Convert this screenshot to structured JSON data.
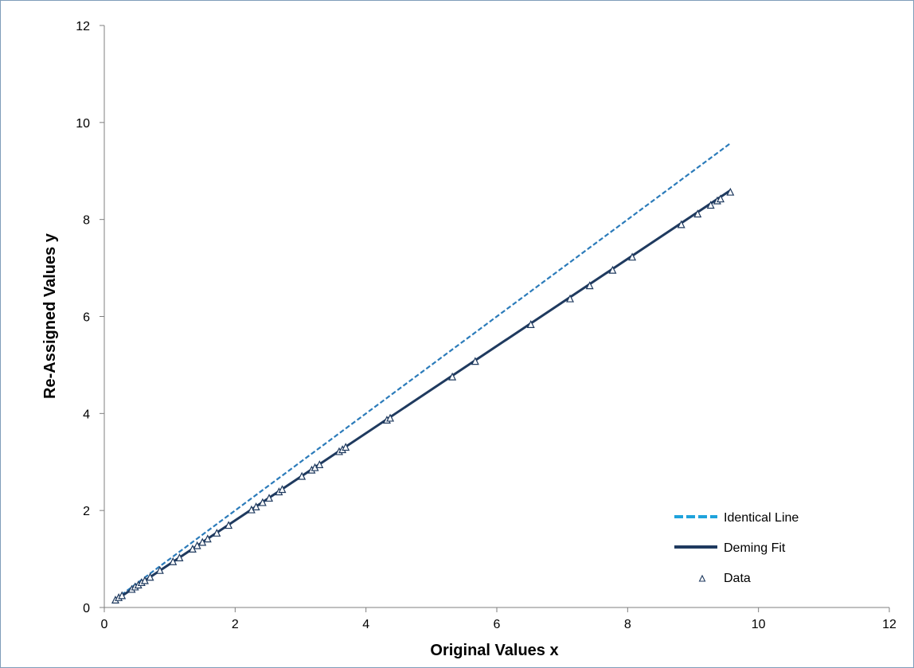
{
  "chart_data": {
    "type": "scatter",
    "title": "",
    "xlabel": "Original Values x",
    "ylabel": "Re-Assigned Values y",
    "xlim": [
      0,
      12
    ],
    "ylim": [
      0,
      12
    ],
    "x_ticks": [
      0,
      2,
      4,
      6,
      8,
      10,
      12
    ],
    "y_ticks": [
      0,
      2,
      4,
      6,
      8,
      10,
      12
    ],
    "grid": false,
    "legend_position": "bottom-right",
    "series": [
      {
        "name": "Identical Line",
        "kind": "line",
        "style": "dashed",
        "color": "#2b7bba",
        "legend_color": "#1fa3dc",
        "x": [
          0.17,
          9.57
        ],
        "y": [
          0.17,
          9.57
        ]
      },
      {
        "name": "Deming Fit",
        "kind": "line",
        "style": "solid",
        "color": "#1f3a5f",
        "x": [
          0.17,
          9.57
        ],
        "y": [
          0.15,
          8.6
        ]
      },
      {
        "name": "Data",
        "kind": "scatter",
        "marker": "triangle-open",
        "color": "#1f3a5f",
        "x": [
          0.17,
          0.22,
          0.27,
          0.42,
          0.47,
          0.52,
          0.57,
          0.62,
          0.7,
          0.85,
          1.05,
          1.15,
          1.35,
          1.42,
          1.5,
          1.58,
          1.72,
          1.9,
          2.25,
          2.32,
          2.42,
          2.52,
          2.67,
          2.72,
          3.02,
          3.17,
          3.22,
          3.29,
          3.59,
          3.64,
          3.69,
          4.32,
          4.37,
          5.32,
          5.67,
          6.52,
          7.12,
          7.42,
          7.77,
          8.07,
          8.82,
          9.07,
          9.27,
          9.37,
          9.42,
          9.57
        ],
        "y": [
          0.15,
          0.2,
          0.24,
          0.37,
          0.42,
          0.46,
          0.51,
          0.55,
          0.62,
          0.76,
          0.94,
          1.02,
          1.2,
          1.27,
          1.34,
          1.41,
          1.53,
          1.69,
          2.01,
          2.07,
          2.16,
          2.25,
          2.38,
          2.43,
          2.7,
          2.83,
          2.88,
          2.94,
          3.21,
          3.25,
          3.3,
          3.86,
          3.9,
          4.75,
          5.07,
          5.83,
          6.36,
          6.63,
          6.95,
          7.22,
          7.89,
          8.11,
          8.29,
          8.38,
          8.42,
          8.56
        ]
      }
    ]
  }
}
